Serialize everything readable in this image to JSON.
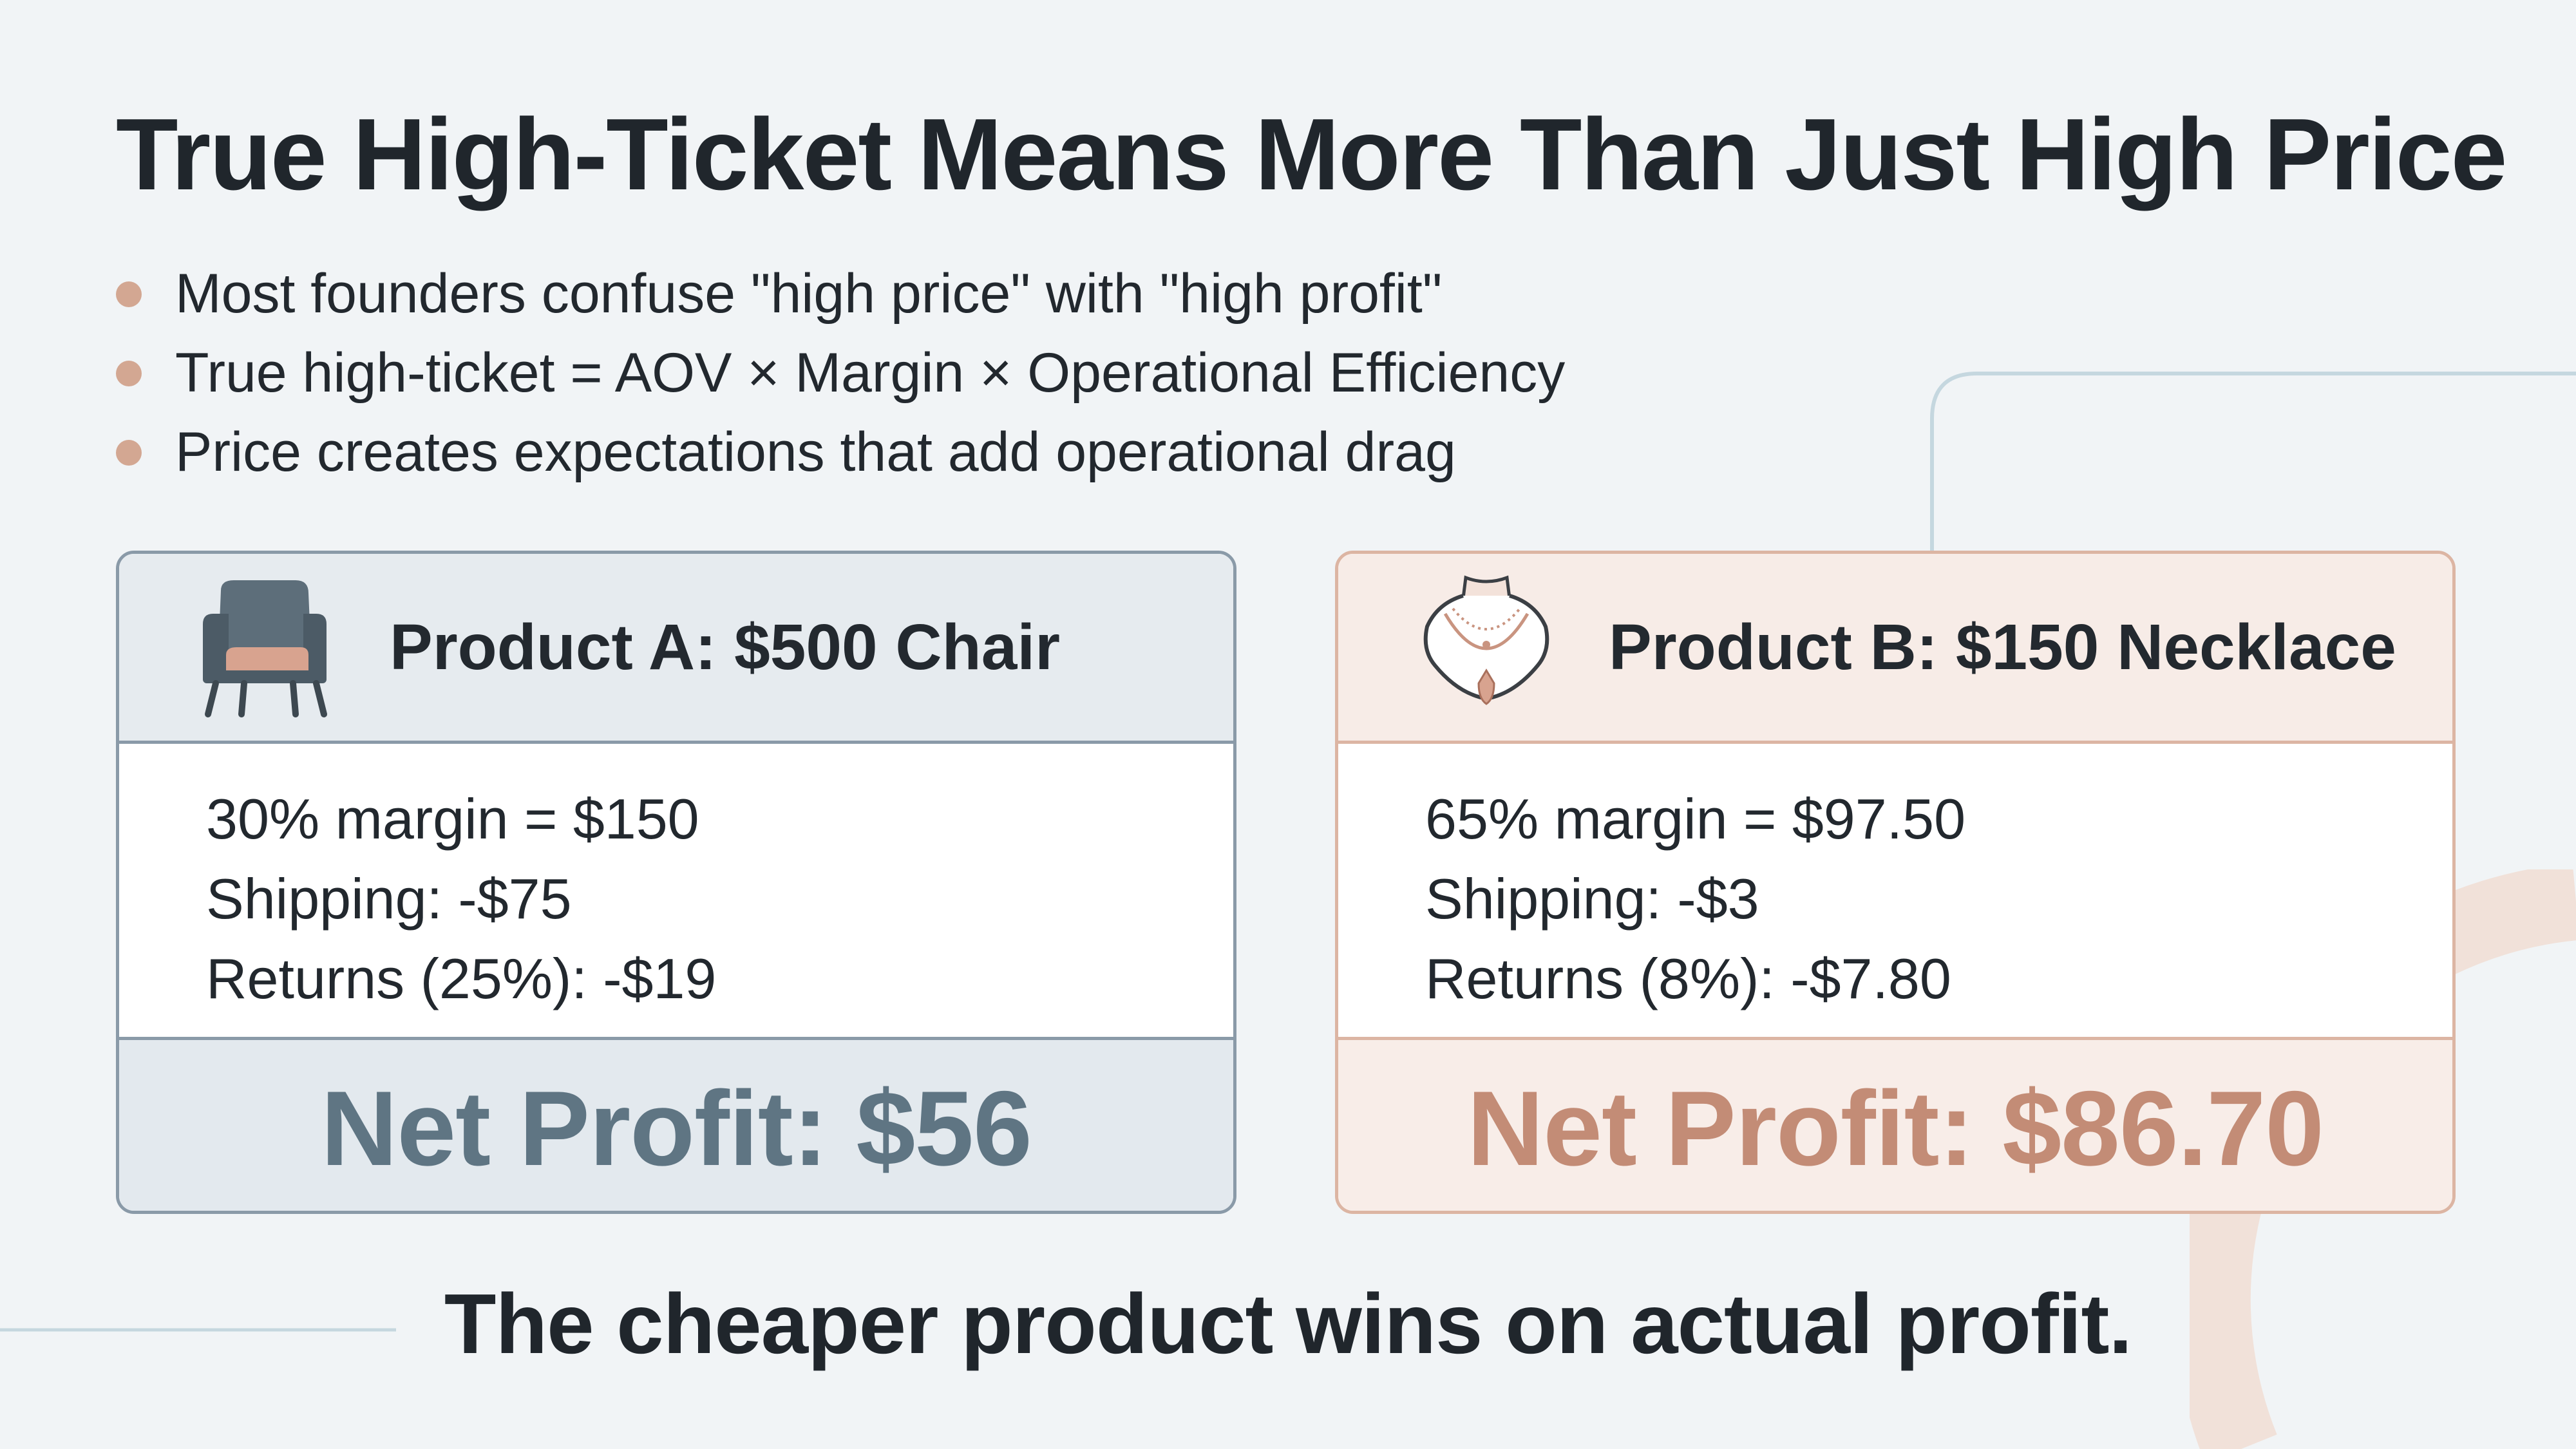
{
  "title": "True High-Ticket Means More Than Just High Price",
  "bullets": [
    "Most founders confuse \"high price\" with \"high profit\"",
    "True high-ticket = AOV × Margin × Operational Efficiency",
    "Price creates expectations that add operational drag"
  ],
  "product_a": {
    "icon": "armchair-icon",
    "title": "Product A: $500 Chair",
    "lines": [
      "30% margin = $150",
      "Shipping: -$75",
      "Returns (25%): -$19"
    ],
    "net_profit": "Net Profit: $56"
  },
  "product_b": {
    "icon": "necklace-icon",
    "title": "Product B: $150 Necklace",
    "lines": [
      "65% margin = $97.50",
      "Shipping: -$3",
      "Returns (8%): -$7.80"
    ],
    "net_profit": "Net Profit: $86.70"
  },
  "conclusion": "The cheaper product wins on actual profit.",
  "colors": {
    "background": "#f1f4f6",
    "bullet_accent": "#d3a792",
    "card_a_border": "#8a9aa8",
    "card_a_profit": "#5f7583",
    "card_b_border": "#dcb5a3",
    "card_b_profit": "#c38c76"
  }
}
